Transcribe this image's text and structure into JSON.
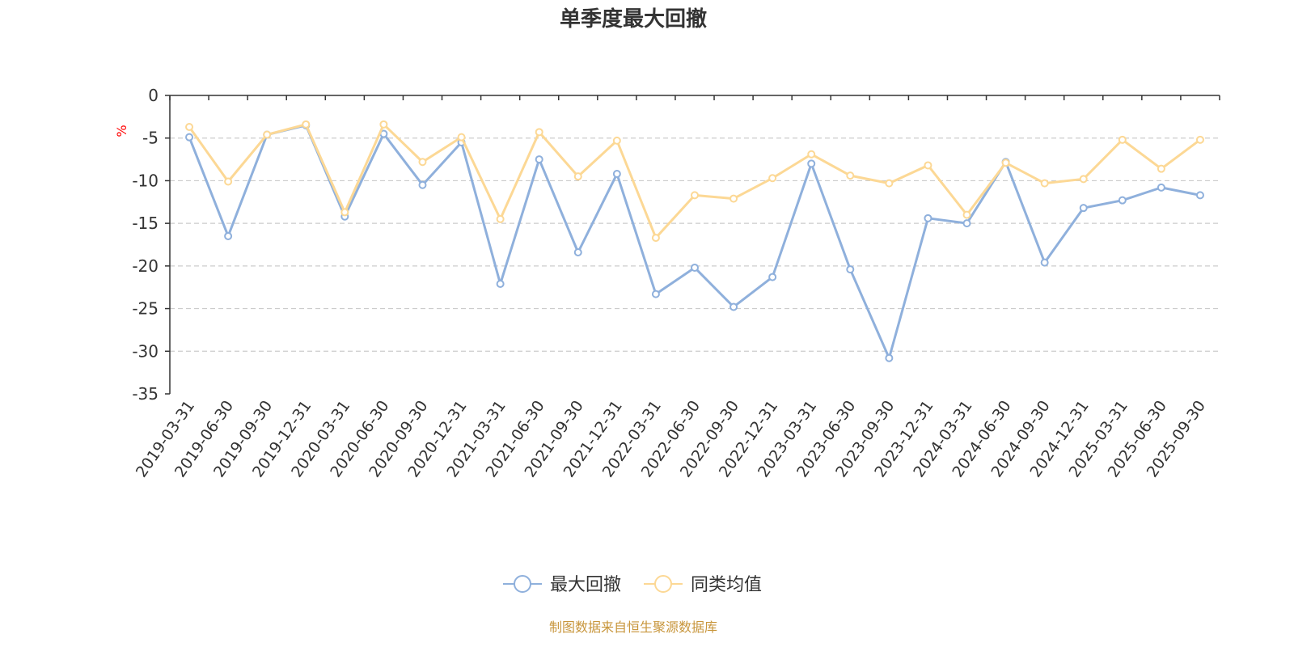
{
  "chart_data": {
    "type": "line",
    "title": "单季度最大回撤",
    "ylabel": "%",
    "ylim": [
      -35,
      0
    ],
    "yticks": [
      0,
      -5,
      -10,
      -15,
      -20,
      -25,
      -30,
      -35
    ],
    "grid": true,
    "legend_position": "bottom",
    "categories": [
      "2019-03-31",
      "2019-06-30",
      "2019-09-30",
      "2019-12-31",
      "2020-03-31",
      "2020-06-30",
      "2020-09-30",
      "2020-12-31",
      "2021-03-31",
      "2021-06-30",
      "2021-09-30",
      "2021-12-31",
      "2022-03-31",
      "2022-06-30",
      "2022-09-30",
      "2022-12-31",
      "2023-03-31",
      "2023-06-30",
      "2023-09-30",
      "2023-12-31",
      "2024-03-31",
      "2024-06-30",
      "2024-09-30",
      "2024-12-31",
      "2025-03-31",
      "2025-06-30",
      "2025-09-30"
    ],
    "series": [
      {
        "name": "最大回撤",
        "color": "#8fb0dc",
        "values": [
          -4.9,
          -16.5,
          -4.6,
          -3.5,
          -14.2,
          -4.5,
          -10.5,
          -5.5,
          -22.1,
          -7.5,
          -18.4,
          -9.2,
          -23.3,
          -20.2,
          -24.8,
          -21.3,
          -8.0,
          -20.4,
          -30.8,
          -14.4,
          -15.0,
          -7.8,
          -19.6,
          -13.2,
          -12.3,
          -10.8,
          -11.7
        ]
      },
      {
        "name": "同类均值",
        "color": "#fcd895",
        "values": [
          -3.7,
          -10.1,
          -4.6,
          -3.4,
          -13.7,
          -3.4,
          -7.8,
          -4.9,
          -14.5,
          -4.3,
          -9.5,
          -5.3,
          -16.7,
          -11.7,
          -12.1,
          -9.7,
          -6.9,
          -9.4,
          -10.3,
          -8.2,
          -14.0,
          -7.9,
          -10.3,
          -9.8,
          -5.2,
          -8.6,
          -5.2
        ]
      }
    ]
  },
  "source_note": "制图数据来自恒生聚源数据库"
}
